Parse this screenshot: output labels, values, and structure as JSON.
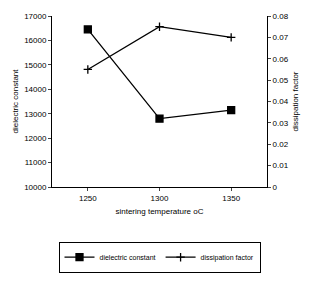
{
  "chart_data": {
    "type": "line",
    "x_label": "sintering temperature oC",
    "y_label": "dielectric constant",
    "y2_label": "dissipation factor",
    "x": [
      1250,
      1300,
      1350
    ],
    "xlim": [
      1225,
      1375
    ],
    "xticks": [
      1250,
      1300,
      1350
    ],
    "ylim": [
      10000,
      17000
    ],
    "yticks": [
      10000,
      11000,
      12000,
      13000,
      14000,
      15000,
      16000,
      17000
    ],
    "y2lim": [
      0,
      0.08
    ],
    "y2ticks": [
      0,
      0.01,
      0.02,
      0.03,
      0.04,
      0.05,
      0.06,
      0.07,
      0.08
    ],
    "grid": false,
    "legend": "bottom",
    "series": [
      {
        "name": "dielectric constant",
        "color": "#000000",
        "marker": "square",
        "line_style": "solid",
        "values": [
          16450,
          12800,
          13150
        ]
      },
      {
        "name": "dissipation factor",
        "color": "#000000",
        "marker": "cross",
        "line_style": "solid",
        "axis": "y2",
        "values": [
          0.055,
          0.075,
          0.07
        ]
      }
    ]
  }
}
